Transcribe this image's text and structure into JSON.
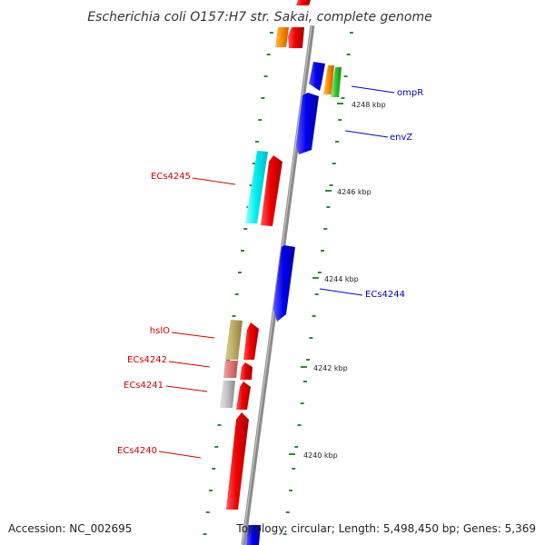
{
  "title": "Escherichia coli O157:H7 str. Sakai, complete genome",
  "footer": {
    "accession": "Accession: NC_002695",
    "topology": "Topology: circular; Length: 5,498,450 bp; Genes: 5,369"
  },
  "colors": {
    "forward_label": "#d40000",
    "reverse_label": "#0000cc",
    "backbone": "#888888",
    "tick": "#2e8b2e"
  },
  "scale_labels": [
    "4248 kbp",
    "4246 kbp",
    "4244 kbp",
    "4242 kbp",
    "4240 kbp"
  ],
  "gene_labels": {
    "ompR": "ompR",
    "envZ": "envZ",
    "ECs4245": "ECs4245",
    "ECs4244": "ECs4244",
    "hslO": "hslO",
    "ECs4242": "ECs4242",
    "ECs4241": "ECs4241",
    "ECs4240": "ECs4240"
  }
}
